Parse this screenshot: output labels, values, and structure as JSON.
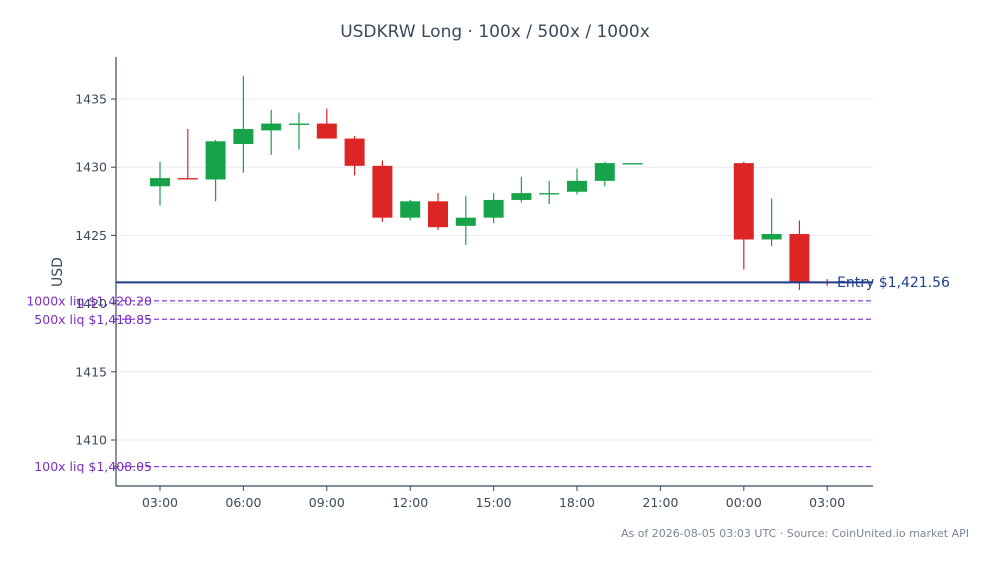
{
  "chart_data": {
    "type": "candlestick",
    "title": "USDKRW Long · 100x / 500x / 1000x",
    "ylabel": "USD",
    "xlabel": "",
    "ylim": [
      1407.4,
      1438.5
    ],
    "yticks": [
      1410,
      1415,
      1420,
      1425,
      1430,
      1435
    ],
    "xticks": [
      {
        "label": "03:00",
        "hour": 3
      },
      {
        "label": "06:00",
        "hour": 6
      },
      {
        "label": "09:00",
        "hour": 9
      },
      {
        "label": "12:00",
        "hour": 12
      },
      {
        "label": "15:00",
        "hour": 15
      },
      {
        "label": "18:00",
        "hour": 18
      },
      {
        "label": "21:00",
        "hour": 21
      },
      {
        "label": "00:00",
        "hour": 24
      },
      {
        "label": "03:00",
        "hour": 27
      }
    ],
    "candles": [
      {
        "t": 3,
        "o": 1428.6,
        "h": 1430.4,
        "l": 1427.2,
        "c": 1429.2
      },
      {
        "t": 4,
        "o": 1429.2,
        "h": 1432.8,
        "l": 1429.1,
        "c": 1429.1
      },
      {
        "t": 5,
        "o": 1429.1,
        "h": 1432.0,
        "l": 1427.5,
        "c": 1431.9
      },
      {
        "t": 6,
        "o": 1431.7,
        "h": 1436.7,
        "l": 1429.6,
        "c": 1432.8
      },
      {
        "t": 7,
        "o": 1432.7,
        "h": 1434.2,
        "l": 1430.9,
        "c": 1433.2
      },
      {
        "t": 8,
        "o": 1433.1,
        "h": 1434.0,
        "l": 1431.3,
        "c": 1433.2
      },
      {
        "t": 9,
        "o": 1433.2,
        "h": 1434.3,
        "l": 1432.1,
        "c": 1432.1
      },
      {
        "t": 10,
        "o": 1432.1,
        "h": 1432.3,
        "l": 1429.4,
        "c": 1430.1
      },
      {
        "t": 11,
        "o": 1430.1,
        "h": 1430.5,
        "l": 1426.0,
        "c": 1426.3
      },
      {
        "t": 12,
        "o": 1426.3,
        "h": 1427.6,
        "l": 1426.1,
        "c": 1427.5
      },
      {
        "t": 13,
        "o": 1427.5,
        "h": 1428.1,
        "l": 1425.4,
        "c": 1425.6
      },
      {
        "t": 14,
        "o": 1425.7,
        "h": 1427.9,
        "l": 1424.3,
        "c": 1426.3
      },
      {
        "t": 15,
        "o": 1426.3,
        "h": 1428.1,
        "l": 1425.9,
        "c": 1427.6
      },
      {
        "t": 16,
        "o": 1427.6,
        "h": 1429.3,
        "l": 1427.4,
        "c": 1428.1
      },
      {
        "t": 17,
        "o": 1428.0,
        "h": 1429.0,
        "l": 1427.3,
        "c": 1428.1
      },
      {
        "t": 18,
        "o": 1428.2,
        "h": 1429.9,
        "l": 1428.0,
        "c": 1429.0
      },
      {
        "t": 19,
        "o": 1429.0,
        "h": 1430.4,
        "l": 1428.6,
        "c": 1430.3
      },
      {
        "t": 20,
        "o": 1430.2,
        "h": 1430.3,
        "l": 1430.2,
        "c": 1430.3
      },
      {
        "t": 24,
        "o": 1430.3,
        "h": 1430.4,
        "l": 1422.5,
        "c": 1424.7
      },
      {
        "t": 25,
        "o": 1424.7,
        "h": 1427.7,
        "l": 1424.2,
        "c": 1425.1
      },
      {
        "t": 26,
        "o": 1425.1,
        "h": 1426.1,
        "l": 1421.0,
        "c": 1421.6
      },
      {
        "t": 27,
        "o": 1421.6,
        "h": 1421.8,
        "l": 1421.3,
        "c": 1421.56
      }
    ],
    "entry": {
      "value": 1421.56,
      "label": "Entry $1,421.56"
    },
    "liquidations": [
      {
        "value": 1420.2,
        "label": "1000x liq $1,420.20"
      },
      {
        "value": 1418.85,
        "label": "500x liq $1,418.85"
      },
      {
        "value": 1408.05,
        "label": "100x liq $1,408.05"
      }
    ],
    "colors": {
      "up": "#16a34a",
      "down": "#dc2626",
      "entry": "#1e3a8a",
      "liq": "#8b3fd9",
      "grid": "#e5e7eb",
      "axis": "#3b4a5a"
    },
    "grid": true,
    "footnote": "As of 2026-08-05 03:03 UTC · Source: CoinUnited.io market API"
  }
}
